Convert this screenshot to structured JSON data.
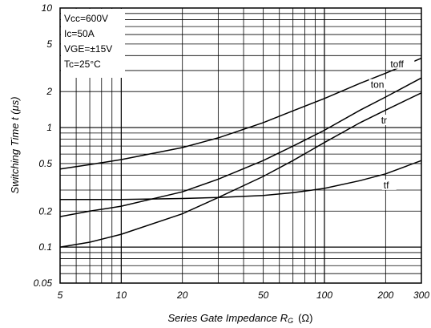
{
  "chart_data": {
    "type": "line",
    "title": "",
    "xlabel": "Series Gate Impedance R",
    "xlabel_sub": "G",
    "xlabel_unit": "(Ω)",
    "ylabel": "Switching Time t (μs)",
    "xscale": "log",
    "yscale": "log",
    "xlim": [
      5,
      300
    ],
    "ylim": [
      0.05,
      10
    ],
    "grid": true,
    "x_ticks": [
      {
        "value": 5,
        "label": "5"
      },
      {
        "value": 10,
        "label": "10"
      },
      {
        "value": 20,
        "label": "20"
      },
      {
        "value": 50,
        "label": "50"
      },
      {
        "value": 100,
        "label": "100"
      },
      {
        "value": 200,
        "label": "200"
      },
      {
        "value": 300,
        "label": "300"
      }
    ],
    "y_ticks": [
      {
        "value": 0.05,
        "label": "0.05"
      },
      {
        "value": 0.1,
        "label": "0.1"
      },
      {
        "value": 0.2,
        "label": "0.2"
      },
      {
        "value": 0.5,
        "label": "0.5"
      },
      {
        "value": 1,
        "label": "1"
      },
      {
        "value": 2,
        "label": "2"
      },
      {
        "value": 5,
        "label": "5"
      },
      {
        "value": 10,
        "label": "10"
      }
    ],
    "conditions": [
      "Vcc=600V",
      "Ic=50A",
      "VGE=±15V",
      "Tc=25°C"
    ],
    "series": [
      {
        "name": "toff",
        "x": [
          5,
          7,
          10,
          20,
          30,
          50,
          70,
          100,
          150,
          200,
          300
        ],
        "values": [
          0.45,
          0.49,
          0.54,
          0.68,
          0.82,
          1.1,
          1.38,
          1.75,
          2.35,
          2.85,
          3.8
        ]
      },
      {
        "name": "ton",
        "x": [
          5,
          7,
          10,
          20,
          30,
          50,
          70,
          100,
          150,
          200,
          300
        ],
        "values": [
          0.18,
          0.2,
          0.22,
          0.29,
          0.37,
          0.53,
          0.7,
          0.95,
          1.4,
          1.8,
          2.6
        ]
      },
      {
        "name": "tr",
        "x": [
          5,
          7,
          10,
          20,
          30,
          50,
          70,
          100,
          150,
          200,
          300
        ],
        "values": [
          0.1,
          0.11,
          0.128,
          0.19,
          0.26,
          0.39,
          0.53,
          0.75,
          1.1,
          1.4,
          1.95
        ]
      },
      {
        "name": "tf",
        "x": [
          5,
          10,
          20,
          30,
          50,
          70,
          100,
          150,
          200,
          300
        ],
        "values": [
          0.25,
          0.25,
          0.255,
          0.26,
          0.27,
          0.285,
          0.31,
          0.36,
          0.41,
          0.53
        ]
      }
    ]
  }
}
